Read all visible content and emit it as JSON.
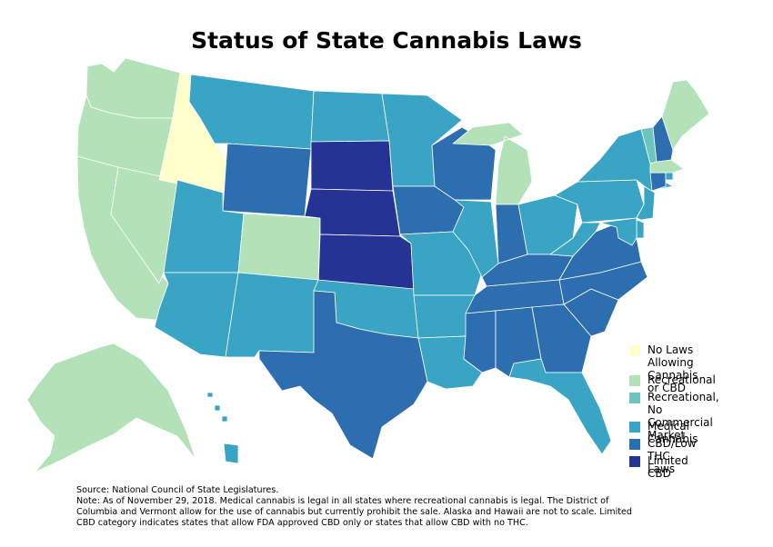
{
  "title": "Status of State Cannabis Laws",
  "legend": {
    "items": [
      {
        "key": "none",
        "label": "No Laws Allowing\nCannabis or CBD",
        "color": "#ffffcc"
      },
      {
        "key": "rec",
        "label": "Recreational",
        "color": "#b3e2b8"
      },
      {
        "key": "recnc",
        "label": "Recreational,\nNo Commercial Market",
        "color": "#6ac5be"
      },
      {
        "key": "med",
        "label": "Medical Cannabis",
        "color": "#3aa4c4"
      },
      {
        "key": "cbd",
        "label": "CBD/Low THC Laws",
        "color": "#2d6eb0"
      },
      {
        "key": "ltd",
        "label": "Limited CBD",
        "color": "#253494"
      }
    ]
  },
  "footer": {
    "source": "Source: National Council of State Legislatures.",
    "note": "Note: As of November 29, 2018. Medical cannabis is legal in all states where recreational cannabis is legal. The District of Columbia and Vermont allow for the use of cannabis but currently prohibit the sale. Alaska and Hawaii are not to scale. Limited CBD category indicates states that allow FDA approved CBD only or states that allow CBD with no THC."
  },
  "states": {
    "WA": "rec",
    "OR": "rec",
    "CA": "rec",
    "NV": "rec",
    "CO": "rec",
    "MI": "rec",
    "MA": "rec",
    "ME": "rec",
    "AK": "rec",
    "ID": "none",
    "VT": "recnc",
    "MT": "med",
    "ND": "med",
    "MN": "med",
    "UT": "med",
    "AZ": "med",
    "NM": "med",
    "OK": "med",
    "MO": "med",
    "AR": "med",
    "LA": "med",
    "IL": "med",
    "OH": "med",
    "PA": "med",
    "NY": "med",
    "NJ": "med",
    "MD": "med",
    "DE": "med",
    "WV": "med",
    "FL": "med",
    "HI": "med",
    "RI": "med",
    "WY": "cbd",
    "TX": "cbd",
    "IA": "cbd",
    "WI": "cbd",
    "IN": "cbd",
    "KY": "cbd",
    "TN": "cbd",
    "MS": "cbd",
    "AL": "cbd",
    "GA": "cbd",
    "SC": "cbd",
    "NC": "cbd",
    "VA": "cbd",
    "NH": "cbd",
    "CT": "cbd",
    "SD": "ltd",
    "NE": "ltd",
    "KS": "ltd"
  }
}
